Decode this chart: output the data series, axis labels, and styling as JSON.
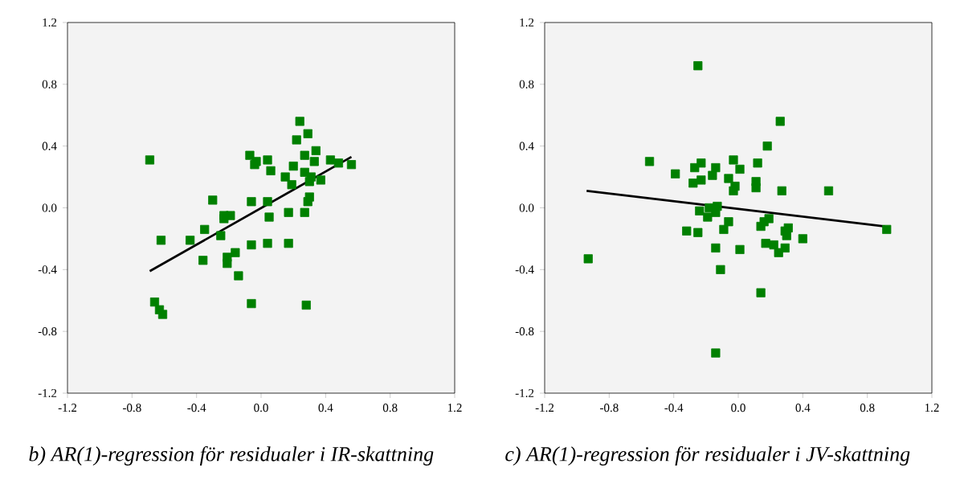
{
  "chart_data": [
    {
      "type": "scatter",
      "title": "*b) AR(1)-regression för residualer i IR-skattning*",
      "xlim": [
        -1.2,
        1.2
      ],
      "ylim": [
        -1.2,
        1.2
      ],
      "xticks": [
        -1.2,
        -0.8,
        -0.4,
        {
          "value": 0,
          "label": "0.0"
        },
        0.4,
        0.8,
        1.2
      ],
      "yticks": [
        -1.2,
        -0.8,
        -0.4,
        {
          "value": 0,
          "label": "0.0"
        },
        0.4,
        0.8,
        1.2
      ],
      "series": [
        {
          "color": "#008000",
          "marker": "square",
          "x": [
            -0.69,
            0.24,
            0.29,
            0.22,
            -0.07,
            -0.03,
            -0.04,
            0.04,
            0.06,
            0.27,
            0.34,
            0.33,
            0.43,
            0.48,
            0.56,
            0.2,
            0.15,
            0.19,
            0.27,
            0.31,
            0.3,
            0.37,
            0.3,
            0.29,
            0.27,
            0.17,
            0.05,
            0.04,
            -0.06,
            -0.3,
            -0.23,
            -0.19,
            -0.23,
            -0.35,
            -0.25,
            -0.62,
            -0.44,
            -0.06,
            0.04,
            0.17,
            -0.16,
            -0.21,
            -0.21,
            -0.36,
            -0.14,
            -0.66,
            -0.63,
            -0.61,
            -0.06,
            0.28
          ],
          "values": [
            0.31,
            0.56,
            0.48,
            0.44,
            0.34,
            0.3,
            0.28,
            0.31,
            0.24,
            0.34,
            0.37,
            0.3,
            0.31,
            0.29,
            0.28,
            0.27,
            0.2,
            0.15,
            0.23,
            0.2,
            0.17,
            0.18,
            0.07,
            0.04,
            -0.03,
            -0.03,
            -0.06,
            0.04,
            0.04,
            0.05,
            -0.05,
            -0.05,
            -0.07,
            -0.14,
            -0.18,
            -0.21,
            -0.21,
            -0.24,
            -0.23,
            -0.23,
            -0.29,
            -0.32,
            -0.36,
            -0.34,
            -0.44,
            -0.61,
            -0.66,
            -0.69,
            -0.62,
            -0.63
          ]
        },
        {
          "type": "line",
          "color": "#000000",
          "x": [
            -0.69,
            0.56
          ],
          "values": [
            -0.41,
            0.33
          ]
        }
      ]
    },
    {
      "type": "scatter",
      "title": "*c) AR(1)-regression för residualer i JV-skattning*",
      "xlim": [
        -1.2,
        1.2
      ],
      "ylim": [
        -1.2,
        1.2
      ],
      "xticks": [
        -1.2,
        -0.8,
        -0.4,
        {
          "value": 0,
          "label": "0.0"
        },
        0.4,
        0.8,
        1.2
      ],
      "yticks": [
        -1.2,
        -0.8,
        -0.4,
        {
          "value": 0,
          "label": "0.0"
        },
        0.4,
        0.8,
        1.2
      ],
      "series": [
        {
          "color": "#008000",
          "marker": "square",
          "x": [
            -0.25,
            -0.55,
            -0.39,
            -0.23,
            -0.27,
            -0.14,
            -0.16,
            -0.23,
            -0.28,
            -0.24,
            -0.18,
            -0.13,
            -0.14,
            -0.19,
            -0.32,
            -0.25,
            -0.14,
            -0.11,
            -0.93,
            -0.14,
            -0.09,
            0.26,
            0.18,
            -0.03,
            0.12,
            0.01,
            -0.06,
            -0.02,
            -0.03,
            0.11,
            0.11,
            0.27,
            0.56,
            -0.06,
            0.19,
            0.16,
            0.14,
            0.31,
            0.29,
            0.3,
            0.4,
            0.01,
            0.17,
            0.22,
            0.29,
            0.25,
            0.14,
            0.92
          ],
          "values": [
            0.92,
            0.3,
            0.22,
            0.29,
            0.26,
            0.26,
            0.21,
            0.18,
            0.16,
            -0.02,
            0.0,
            0.01,
            -0.03,
            -0.06,
            -0.15,
            -0.16,
            -0.26,
            -0.4,
            -0.33,
            -0.94,
            -0.14,
            0.56,
            0.4,
            0.31,
            0.29,
            0.25,
            0.19,
            0.14,
            0.11,
            0.17,
            0.13,
            0.11,
            0.11,
            -0.09,
            -0.07,
            -0.09,
            -0.12,
            -0.13,
            -0.15,
            -0.18,
            -0.2,
            -0.27,
            -0.23,
            -0.24,
            -0.26,
            -0.29,
            -0.55,
            -0.14
          ]
        },
        {
          "type": "line",
          "color": "#000000",
          "x": [
            -0.94,
            0.91
          ],
          "values": [
            0.11,
            -0.12
          ]
        }
      ]
    }
  ]
}
